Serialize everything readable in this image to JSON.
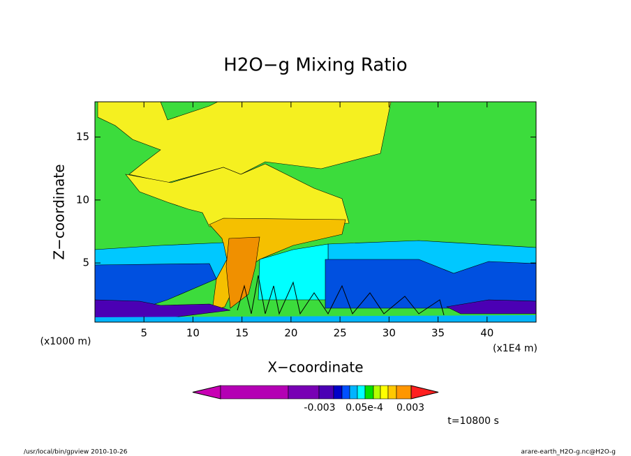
{
  "chart_data": {
    "type": "contour",
    "title": "H2O−g Mixing Ratio",
    "xlabel": "X−coordinate",
    "ylabel": "Z−coordinate",
    "x_unit_left": "(x1000 m)",
    "x_unit_right": "(x1E4 m)",
    "xlim": [
      0,
      45
    ],
    "ylim": [
      0.3,
      17.8
    ],
    "xticks": [
      5,
      10,
      15,
      20,
      25,
      30,
      35,
      40
    ],
    "yticks": [
      5,
      10,
      15
    ],
    "colorbar": {
      "colors": [
        "#c800b4",
        "#b400b4",
        "#7800b4",
        "#4b00b4",
        "#0000c8",
        "#0050ff",
        "#00b4ff",
        "#00ffff",
        "#00e000",
        "#b4ff00",
        "#ffff00",
        "#ffc800",
        "#ff9600",
        "#ff2020"
      ],
      "tick_labels": [
        "-0.003",
        "0.05e-4",
        "0.003"
      ]
    },
    "time_label": "t=10800 s",
    "footer_left": "/usr/local/bin/gpview  2010-10-26",
    "footer_right": "arare-earth_H2O-g.nc@H2O-g"
  }
}
